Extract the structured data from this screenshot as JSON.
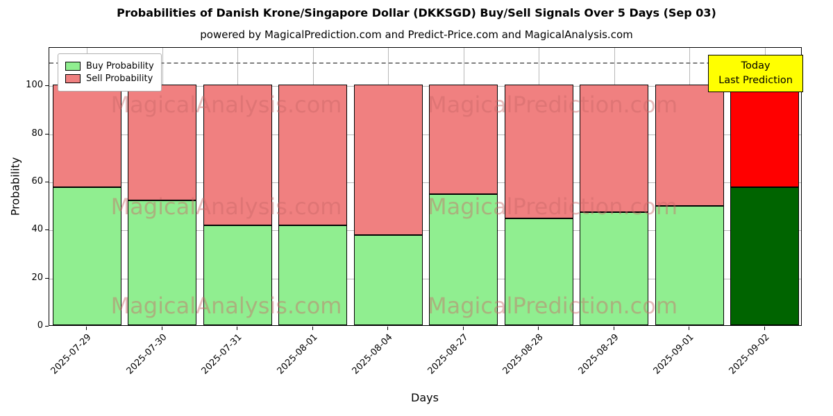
{
  "title": "Probabilities of Danish Krone/Singapore Dollar (DKKSGD) Buy/Sell Signals Over 5 Days (Sep 03)",
  "subtitle": "powered by MagicalPrediction.com and Predict-Price.com and MagicalAnalysis.com",
  "axes": {
    "x_label": "Days",
    "y_label": "Probability"
  },
  "legend": [
    {
      "label": "Buy Probability",
      "color": "#90EE90"
    },
    {
      "label": "Sell Probability",
      "color": "#F08080"
    }
  ],
  "annotation": {
    "line1": "Today",
    "line2": "Last Prediction",
    "bg_color": "#FFFF00"
  },
  "watermark": {
    "left_text": "MagicalAnalysis.com",
    "right_text": "MagicalPrediction.com"
  },
  "chart_data": {
    "type": "bar",
    "stacked": true,
    "title": "Probabilities of Danish Krone/Singapore Dollar (DKKSGD) Buy/Sell Signals Over 5 Days (Sep 03)",
    "xlabel": "Days",
    "ylabel": "Probability",
    "categories": [
      "2025-07-29",
      "2025-07-30",
      "2025-07-31",
      "2025-08-01",
      "2025-08-04",
      "2025-08-27",
      "2025-08-28",
      "2025-08-29",
      "2025-09-01",
      "2025-09-02"
    ],
    "series": [
      {
        "name": "Buy Probability",
        "values": [
          57.5,
          52,
          41.5,
          41.5,
          37.5,
          54.5,
          44.5,
          47,
          49.5,
          57.5
        ],
        "colors": [
          "#90EE90",
          "#90EE90",
          "#90EE90",
          "#90EE90",
          "#90EE90",
          "#90EE90",
          "#90EE90",
          "#90EE90",
          "#90EE90",
          "#006400"
        ]
      },
      {
        "name": "Sell Probability",
        "values": [
          42.5,
          48,
          58.5,
          58.5,
          62.5,
          45.5,
          55.5,
          53,
          50.5,
          42.5
        ],
        "colors": [
          "#F08080",
          "#F08080",
          "#F08080",
          "#F08080",
          "#F08080",
          "#F08080",
          "#F08080",
          "#F08080",
          "#F08080",
          "#FF0000"
        ]
      }
    ],
    "y_ticks": [
      0,
      20,
      40,
      60,
      80,
      100
    ],
    "ylim": [
      0,
      116
    ],
    "dashed_line_y": 110,
    "grid": true,
    "legend_position": "upper left"
  }
}
